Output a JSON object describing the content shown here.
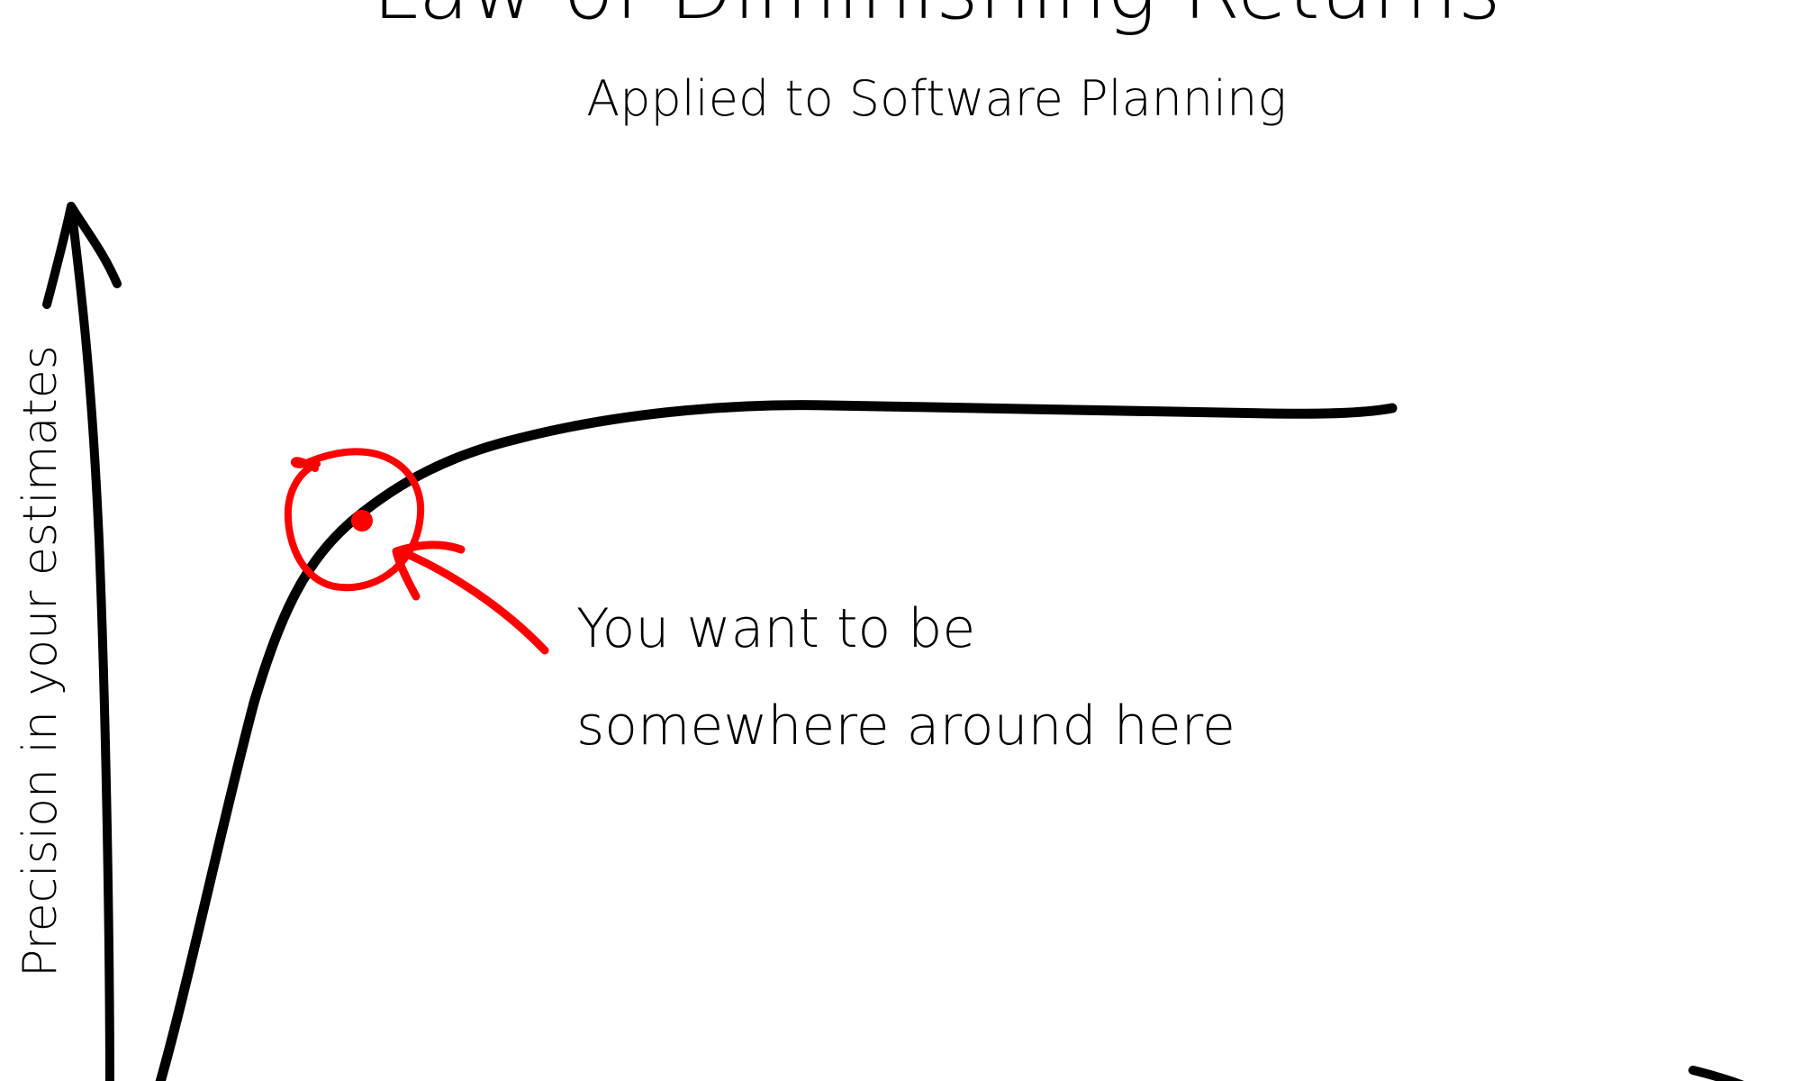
{
  "header": {
    "title": "Law of Diminishing Returns",
    "subtitle": "Applied to Software Planning"
  },
  "axes": {
    "ylabel": "Precision in your estimates"
  },
  "annotation": {
    "line1": "You want to be",
    "line2": "somewhere around here"
  },
  "colors": {
    "ink": "#000000",
    "highlight": "#ff0000",
    "background": "#ffffff"
  }
}
